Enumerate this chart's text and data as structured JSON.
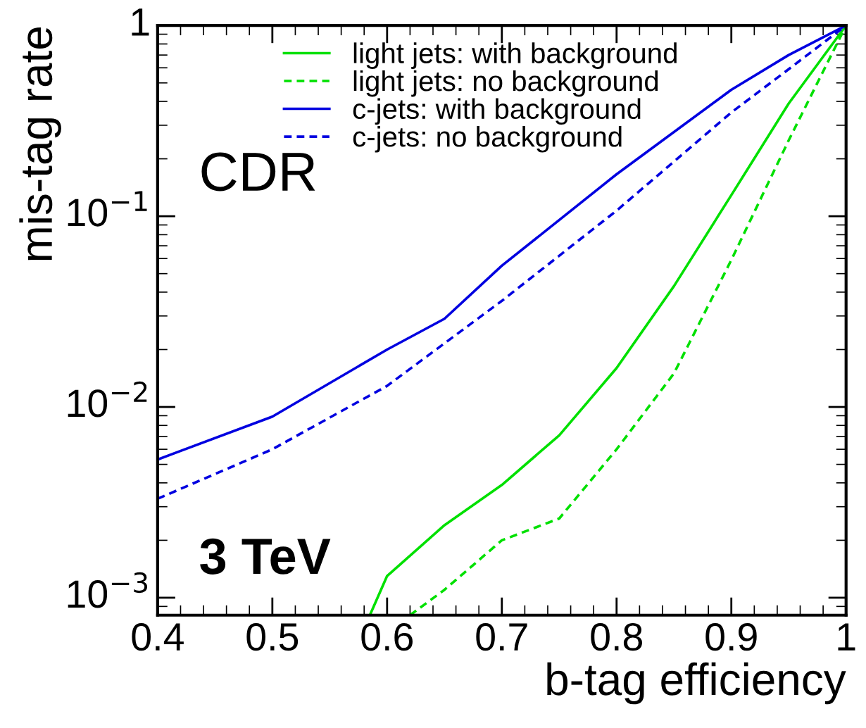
{
  "chart_data": {
    "type": "line",
    "xlabel": "b-tag efficiency",
    "ylabel": "mis-tag rate",
    "log": "y",
    "grid": false,
    "legend": "top",
    "marker": "none",
    "xlim": [
      0.4,
      1.0
    ],
    "ylim": [
      0.00081,
      1
    ],
    "xticks": [
      0.4,
      0.5,
      0.6,
      0.7,
      0.8,
      0.9,
      {
        "value": 1.0,
        "label": "1"
      }
    ],
    "yticks": [
      {
        "value": 0.001,
        "label": "10$^{−3}$"
      },
      {
        "value": 0.01,
        "label": "10$^{−2}$"
      },
      {
        "value": 0.1,
        "label": "10$^{−1}$"
      },
      {
        "value": 1,
        "label": "1"
      }
    ],
    "annotations": [
      "CDR",
      "3 TeV"
    ],
    "series": [
      {
        "name": "light jets: with background",
        "color": "#00e000",
        "line_style": "solid",
        "x": [
          0.585,
          0.6,
          0.65,
          0.7,
          0.75,
          0.8,
          0.85,
          0.9,
          0.95,
          1.0
        ],
        "values": [
          0.00081,
          0.0013,
          0.0024,
          0.0039,
          0.0071,
          0.016,
          0.043,
          0.129,
          0.39,
          1
        ]
      },
      {
        "name": "light jets: no background",
        "color": "#00e000",
        "line_style": "dashed",
        "x": [
          0.62,
          0.65,
          0.7,
          0.75,
          0.8,
          0.85,
          0.9,
          0.95,
          1.0
        ],
        "values": [
          0.00081,
          0.0011,
          0.002,
          0.0026,
          0.006,
          0.015,
          0.059,
          0.25,
          1
        ]
      },
      {
        "name": "c-jets: with background",
        "color": "#0000e0",
        "line_style": "solid",
        "x": [
          0.4,
          0.5,
          0.6,
          0.65,
          0.7,
          0.8,
          0.9,
          0.95,
          1.0
        ],
        "values": [
          0.0053,
          0.0089,
          0.02,
          0.029,
          0.055,
          0.166,
          0.46,
          0.7,
          1
        ]
      },
      {
        "name": "c-jets: no background",
        "color": "#0000e0",
        "line_style": "dashed",
        "x": [
          0.4,
          0.5,
          0.6,
          0.7,
          0.8,
          0.9,
          0.95,
          1.0
        ],
        "values": [
          0.0033,
          0.006,
          0.0129,
          0.036,
          0.107,
          0.35,
          0.59,
          1
        ]
      }
    ]
  }
}
